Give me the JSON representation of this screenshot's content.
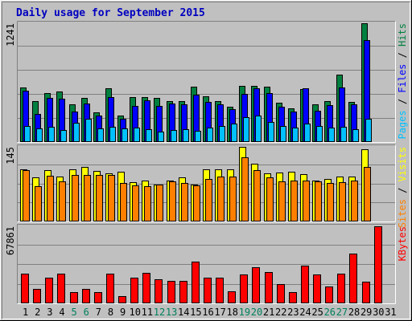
{
  "title": "Daily usage for September 2015",
  "colors": {
    "background": "#c0c0c0",
    "hits": "#008040",
    "files": "#0000ff",
    "pages": "#00c0ff",
    "visits": "#ffff00",
    "sites": "#ff8000",
    "kbytes": "#ff0000",
    "weekend_day": "#00805c",
    "weekday": "#000000"
  },
  "chart_data": [
    {
      "type": "bar",
      "panel": "hits-files-pages",
      "categories": [
        "1",
        "2",
        "3",
        "4",
        "5",
        "6",
        "7",
        "8",
        "9",
        "10",
        "11",
        "12",
        "13",
        "14",
        "15",
        "16",
        "17",
        "18",
        "19",
        "20",
        "21",
        "22",
        "23",
        "24",
        "25",
        "26",
        "27",
        "28",
        "29",
        "30",
        "31"
      ],
      "ymax_label": "1241",
      "ylim": [
        0,
        1241
      ],
      "legend": [
        "Pages",
        "Files",
        "Hits"
      ],
      "series": [
        {
          "name": "Hits",
          "values": [
            570,
            425,
            510,
            530,
            395,
            460,
            310,
            565,
            275,
            470,
            470,
            465,
            425,
            425,
            575,
            475,
            430,
            370,
            590,
            590,
            575,
            410,
            355,
            550,
            390,
            430,
            705,
            420,
            1240,
            0,
            0
          ]
        },
        {
          "name": "Files",
          "values": [
            540,
            295,
            465,
            450,
            315,
            400,
            275,
            470,
            245,
            380,
            440,
            380,
            400,
            390,
            495,
            420,
            395,
            340,
            505,
            565,
            510,
            365,
            315,
            560,
            330,
            385,
            570,
            395,
            1065,
            0,
            0
          ]
        },
        {
          "name": "Pages",
          "values": [
            165,
            145,
            160,
            125,
            200,
            240,
            140,
            160,
            145,
            150,
            130,
            110,
            125,
            130,
            115,
            155,
            165,
            190,
            260,
            275,
            210,
            170,
            155,
            195,
            165,
            150,
            160,
            135,
            240,
            0,
            0
          ]
        }
      ]
    },
    {
      "type": "bar",
      "panel": "visits-sites",
      "categories": [
        "1",
        "2",
        "3",
        "4",
        "5",
        "6",
        "7",
        "8",
        "9",
        "10",
        "11",
        "12",
        "13",
        "14",
        "15",
        "16",
        "17",
        "18",
        "19",
        "20",
        "21",
        "22",
        "23",
        "24",
        "25",
        "26",
        "27",
        "28",
        "29",
        "30",
        "31"
      ],
      "ymax_label": "145",
      "ylim": [
        0,
        145
      ],
      "legend": [
        "Sites",
        "Visits"
      ],
      "series": [
        {
          "name": "Visits",
          "values": [
            102,
            85,
            100,
            87,
            101,
            106,
            98,
            93,
            96,
            77,
            79,
            71,
            80,
            86,
            72,
            102,
            102,
            102,
            145,
            112,
            94,
            95,
            96,
            92,
            80,
            82,
            87,
            87,
            140,
            0,
            0
          ]
        },
        {
          "name": "Sites",
          "values": [
            100,
            68,
            89,
            78,
            90,
            90,
            90,
            90,
            75,
            70,
            68,
            72,
            78,
            75,
            70,
            83,
            88,
            88,
            125,
            100,
            85,
            78,
            80,
            80,
            78,
            75,
            76,
            80,
            106,
            0,
            0
          ]
        }
      ]
    },
    {
      "type": "bar",
      "panel": "kbytes",
      "categories": [
        "1",
        "2",
        "3",
        "4",
        "5",
        "6",
        "7",
        "8",
        "9",
        "10",
        "11",
        "12",
        "13",
        "14",
        "15",
        "16",
        "17",
        "18",
        "19",
        "20",
        "21",
        "22",
        "23",
        "24",
        "25",
        "26",
        "27",
        "28",
        "29",
        "30",
        "31"
      ],
      "ymax_label": "67861",
      "ylim": [
        0,
        67861
      ],
      "legend": [
        "KBytes"
      ],
      "series": [
        {
          "name": "KBytes",
          "values": [
            26500,
            12400,
            22600,
            26500,
            9700,
            13000,
            9600,
            26500,
            6200,
            22800,
            26800,
            21000,
            19700,
            19700,
            36900,
            22300,
            22300,
            10800,
            25800,
            31600,
            27300,
            17000,
            9600,
            33200,
            25100,
            14600,
            26200,
            43900,
            18800,
            67800,
            0
          ]
        }
      ]
    }
  ]
}
